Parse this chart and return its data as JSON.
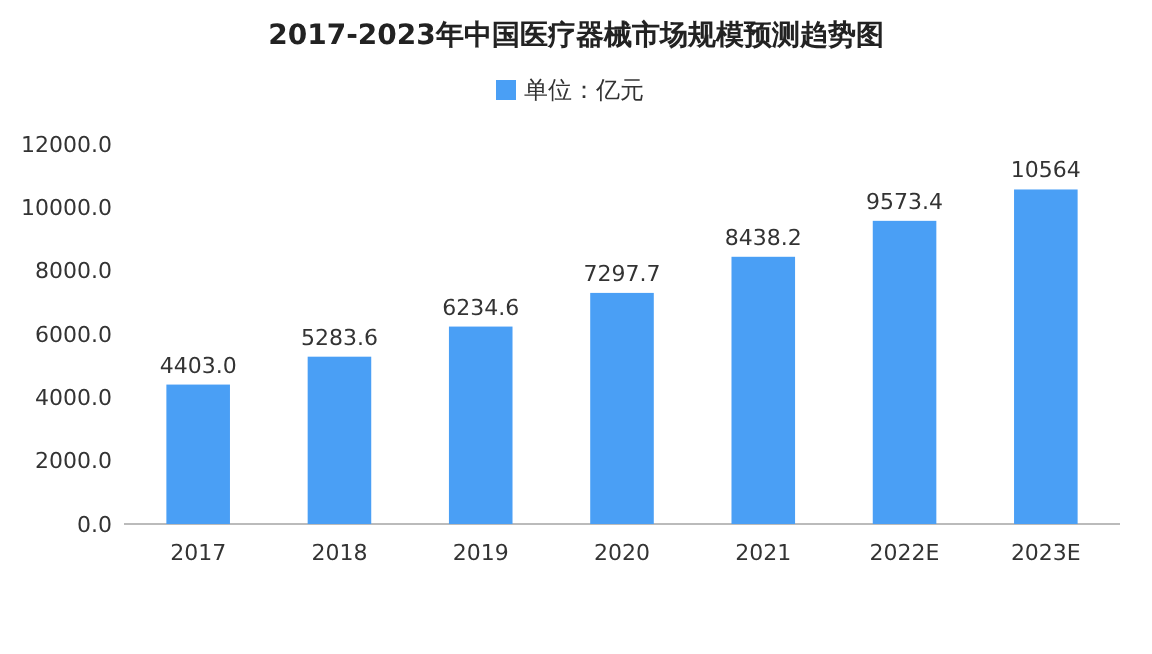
{
  "chart_data": {
    "type": "bar",
    "title": "2017-2023年中国医疗器械市场规模预测趋势图",
    "categories": [
      "2017",
      "2018",
      "2019",
      "2020",
      "2021",
      "2022E",
      "2023E"
    ],
    "series": [
      {
        "name": "单位：亿元",
        "color": "#4a9ff5",
        "values": [
          4403.0,
          5283.6,
          6234.6,
          7297.7,
          8438.2,
          9573.4,
          10564
        ],
        "value_labels": [
          "4403.0",
          "5283.6",
          "6234.6",
          "7297.7",
          "8438.2",
          "9573.4",
          "10564"
        ]
      }
    ],
    "ylim": [
      0,
      12000
    ],
    "yticks": [
      {
        "value": 0,
        "label": "0.0"
      },
      {
        "value": 2000,
        "label": "2000.0"
      },
      {
        "value": 4000,
        "label": "4000.0"
      },
      {
        "value": 6000,
        "label": "6000.0"
      },
      {
        "value": 8000,
        "label": "8000.0"
      },
      {
        "value": 10000,
        "label": "10000.0"
      },
      {
        "value": 12000,
        "label": "12000.0"
      }
    ],
    "legend": "top",
    "grid": false
  }
}
